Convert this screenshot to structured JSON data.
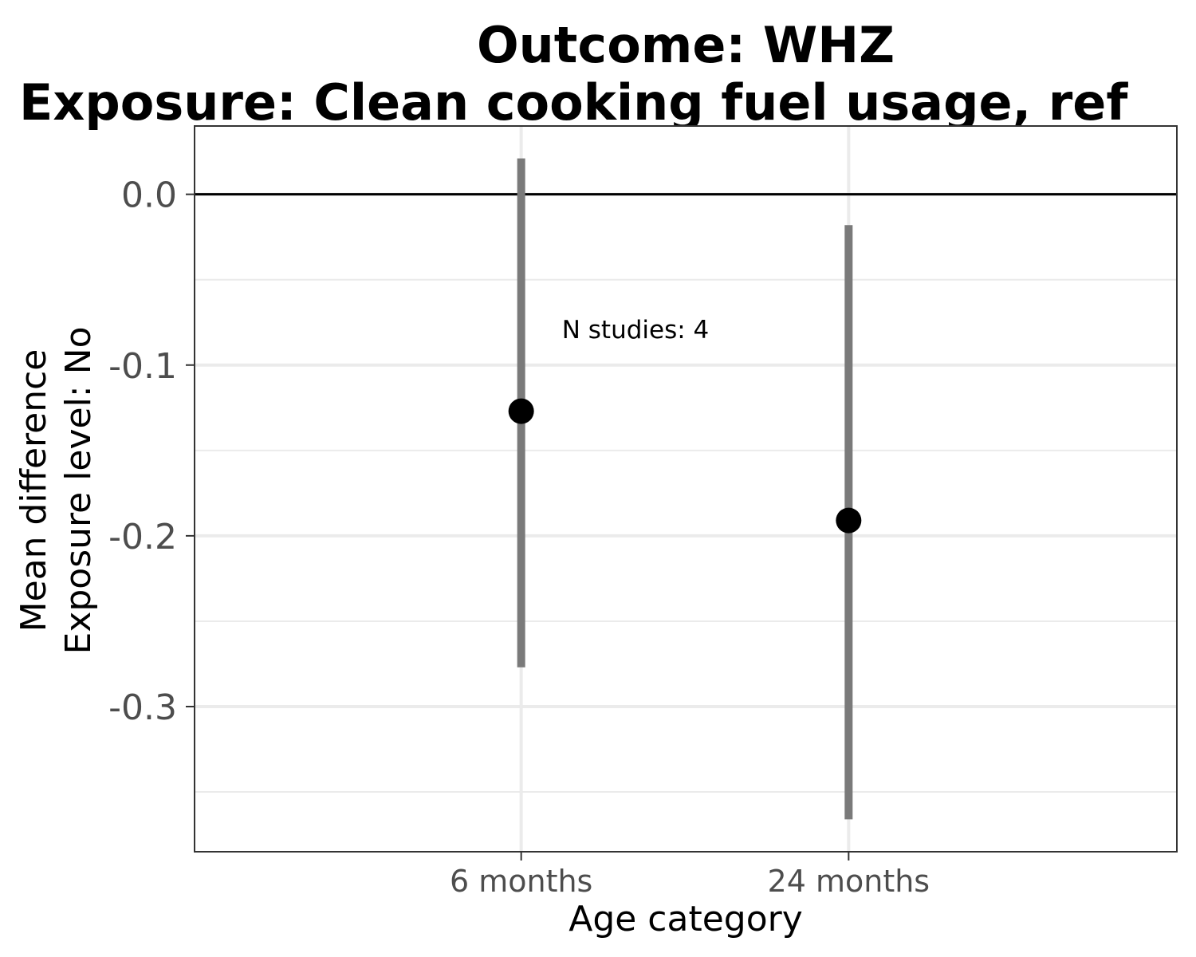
{
  "chart_data": {
    "type": "scatter",
    "title_line1": "Outcome: WHZ",
    "title_line2": "Exposure: Clean cooking fuel usage, ref",
    "xlabel": "Age category",
    "ylabel_line1": "Mean difference",
    "ylabel_line2": "Exposure level: No",
    "categories": [
      "6 months",
      "24 months"
    ],
    "points": [
      {
        "category": "6 months",
        "estimate": -0.127,
        "lower": -0.277,
        "upper": 0.021
      },
      {
        "category": "24 months",
        "estimate": -0.191,
        "lower": -0.366,
        "upper": -0.018
      }
    ],
    "yticks": [
      0.0,
      -0.1,
      -0.2,
      -0.3
    ],
    "ytick_labels": [
      "0.0",
      "-0.1",
      "-0.2",
      "-0.3"
    ],
    "ylim": [
      -0.385,
      0.04
    ],
    "reference_line": 0.0,
    "annotation": "N studies: 4",
    "grid": true,
    "colors": {
      "point": "#000000",
      "interval": "#7a7a7a",
      "grid": "#ebebeb",
      "border": "#333333"
    }
  }
}
